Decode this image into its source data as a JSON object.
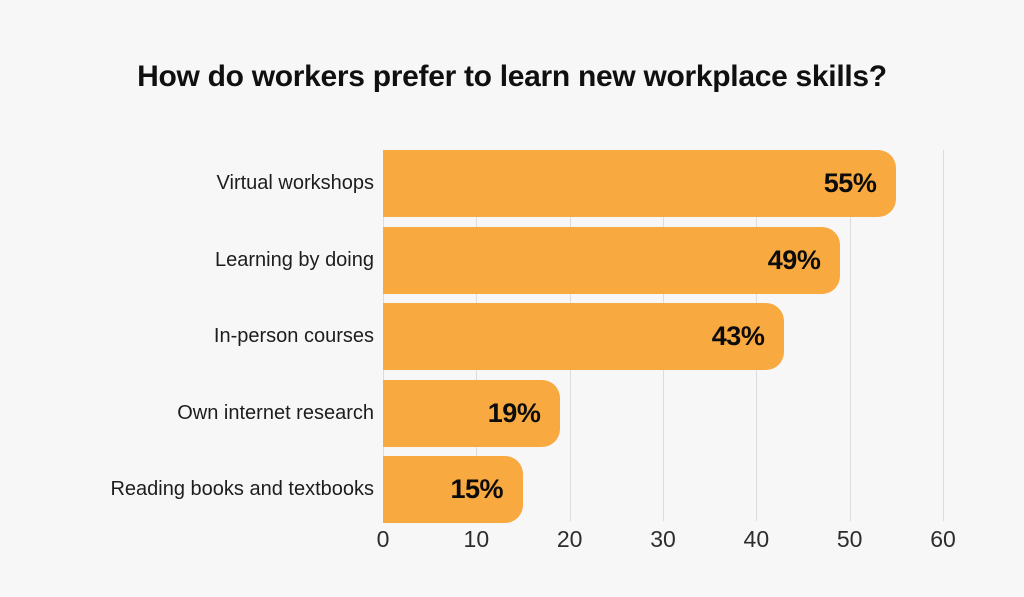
{
  "chart": {
    "title": "How do workers prefer to learn new workplace skills?"
  },
  "chart_data": {
    "type": "bar",
    "orientation": "horizontal",
    "title": "How do workers prefer to learn new workplace skills?",
    "categories": [
      "Virtual workshops",
      "Learning by doing",
      "In-person courses",
      "Own internet research",
      "Reading books and textbooks"
    ],
    "values": [
      55,
      49,
      43,
      19,
      15
    ],
    "value_labels": [
      "55%",
      "49%",
      "43%",
      "19%",
      "15%"
    ],
    "xlabel": "",
    "ylabel": "",
    "xlim": [
      0,
      60
    ],
    "xticks": [
      0,
      10,
      20,
      30,
      40,
      50,
      60
    ],
    "grid": "vertical-gridlines-behind-bars",
    "legend": "none",
    "colors": {
      "background": "#f7f7f8",
      "bar": "#f8a940",
      "gridline": "#dcdcdd",
      "title_text": "#101010",
      "category_text": "#1d1d1d",
      "value_text": "#0c0c0c",
      "tick_text": "#2d2d2d"
    }
  }
}
